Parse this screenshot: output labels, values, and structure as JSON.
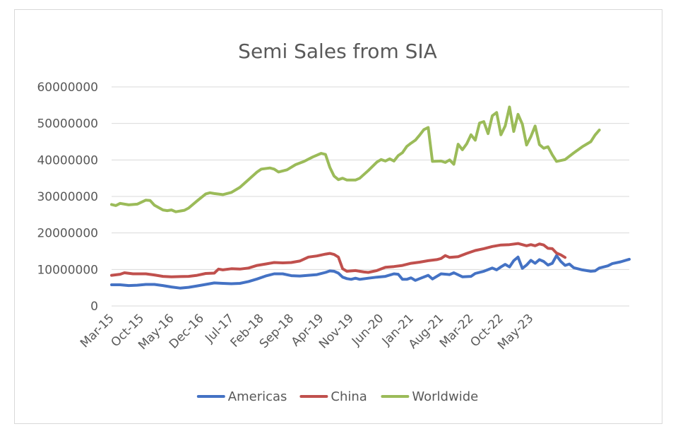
{
  "chart_data": {
    "type": "line",
    "title": "Semi Sales from SIA",
    "xlabel": "",
    "ylabel": "",
    "ylim": [
      0,
      60000000
    ],
    "yticks": [
      0,
      10000000,
      20000000,
      30000000,
      40000000,
      50000000,
      60000000
    ],
    "ytick_labels": [
      "0",
      "10000000",
      "20000000",
      "30000000",
      "40000000",
      "50000000",
      "60000000"
    ],
    "x_tick_labels": [
      "Mar-15",
      "Oct-15",
      "May-16",
      "Dec-16",
      "Jul-17",
      "Feb-18",
      "Sep-18",
      "Apr-19",
      "Nov-19",
      "Jun-20",
      "Jan-21",
      "Aug-21",
      "Mar-22",
      "Oct-22",
      "May-23"
    ],
    "x_tick_interval_months": 7,
    "x_start": "Mar-15",
    "grid": true,
    "legend_position": "bottom",
    "series": [
      {
        "name": "Americas",
        "color": "#4472C4",
        "points": [
          [
            0,
            5800000
          ],
          [
            2,
            5800000
          ],
          [
            4,
            5600000
          ],
          [
            6,
            5700000
          ],
          [
            8,
            5900000
          ],
          [
            10,
            5900000
          ],
          [
            12,
            5600000
          ],
          [
            14,
            5200000
          ],
          [
            16,
            4900000
          ],
          [
            18,
            5100000
          ],
          [
            20,
            5500000
          ],
          [
            22,
            5900000
          ],
          [
            24,
            6300000
          ],
          [
            26,
            6200000
          ],
          [
            28,
            6100000
          ],
          [
            30,
            6200000
          ],
          [
            32,
            6700000
          ],
          [
            34,
            7400000
          ],
          [
            36,
            8200000
          ],
          [
            38,
            8800000
          ],
          [
            40,
            8800000
          ],
          [
            42,
            8300000
          ],
          [
            44,
            8200000
          ],
          [
            46,
            8400000
          ],
          [
            48,
            8600000
          ],
          [
            50,
            9200000
          ],
          [
            51,
            9600000
          ],
          [
            52,
            9500000
          ],
          [
            53,
            9000000
          ],
          [
            54,
            7900000
          ],
          [
            55,
            7500000
          ],
          [
            56,
            7300000
          ],
          [
            57,
            7600000
          ],
          [
            58,
            7300000
          ],
          [
            60,
            7600000
          ],
          [
            62,
            7900000
          ],
          [
            64,
            8100000
          ],
          [
            66,
            8800000
          ],
          [
            67,
            8700000
          ],
          [
            68,
            7300000
          ],
          [
            69,
            7300000
          ],
          [
            70,
            7700000
          ],
          [
            71,
            7000000
          ],
          [
            72,
            7500000
          ],
          [
            74,
            8400000
          ],
          [
            75,
            7400000
          ],
          [
            77,
            8800000
          ],
          [
            79,
            8600000
          ],
          [
            80,
            9100000
          ],
          [
            82,
            8000000
          ],
          [
            84,
            8100000
          ],
          [
            85,
            8900000
          ],
          [
            87,
            9500000
          ],
          [
            89,
            10400000
          ],
          [
            90,
            9900000
          ],
          [
            91,
            10700000
          ],
          [
            92,
            11400000
          ],
          [
            93,
            10700000
          ],
          [
            94,
            12400000
          ],
          [
            95,
            13400000
          ],
          [
            96,
            10300000
          ],
          [
            97,
            11200000
          ],
          [
            98,
            12500000
          ],
          [
            99,
            11700000
          ],
          [
            100,
            12700000
          ],
          [
            101,
            12200000
          ],
          [
            102,
            11200000
          ],
          [
            103,
            11700000
          ],
          [
            104,
            13800000
          ],
          [
            105,
            12200000
          ],
          [
            106,
            11100000
          ],
          [
            107,
            11500000
          ],
          [
            108,
            10500000
          ],
          [
            110,
            9900000
          ],
          [
            112,
            9500000
          ],
          [
            113,
            9600000
          ],
          [
            114,
            10400000
          ],
          [
            116,
            11000000
          ],
          [
            117,
            11600000
          ],
          [
            119,
            12100000
          ],
          [
            121,
            12800000
          ]
        ]
      },
      {
        "name": "China",
        "color": "#C0504D",
        "points": [
          [
            0,
            8400000
          ],
          [
            2,
            8700000
          ],
          [
            3,
            9100000
          ],
          [
            5,
            8800000
          ],
          [
            8,
            8800000
          ],
          [
            10,
            8500000
          ],
          [
            12,
            8100000
          ],
          [
            14,
            8000000
          ],
          [
            18,
            8100000
          ],
          [
            20,
            8400000
          ],
          [
            22,
            8900000
          ],
          [
            24,
            9000000
          ],
          [
            25,
            10100000
          ],
          [
            26,
            9900000
          ],
          [
            28,
            10200000
          ],
          [
            30,
            10100000
          ],
          [
            32,
            10400000
          ],
          [
            34,
            11100000
          ],
          [
            36,
            11500000
          ],
          [
            38,
            11900000
          ],
          [
            40,
            11800000
          ],
          [
            42,
            11900000
          ],
          [
            44,
            12300000
          ],
          [
            46,
            13400000
          ],
          [
            48,
            13700000
          ],
          [
            50,
            14200000
          ],
          [
            51,
            14400000
          ],
          [
            52,
            14100000
          ],
          [
            53,
            13400000
          ],
          [
            54,
            10200000
          ],
          [
            55,
            9500000
          ],
          [
            57,
            9700000
          ],
          [
            59,
            9300000
          ],
          [
            60,
            9200000
          ],
          [
            62,
            9700000
          ],
          [
            64,
            10600000
          ],
          [
            66,
            10800000
          ],
          [
            68,
            11100000
          ],
          [
            70,
            11700000
          ],
          [
            72,
            12000000
          ],
          [
            74,
            12400000
          ],
          [
            76,
            12700000
          ],
          [
            77,
            13000000
          ],
          [
            78,
            13800000
          ],
          [
            79,
            13300000
          ],
          [
            81,
            13500000
          ],
          [
            83,
            14400000
          ],
          [
            85,
            15200000
          ],
          [
            87,
            15700000
          ],
          [
            89,
            16300000
          ],
          [
            91,
            16700000
          ],
          [
            93,
            16800000
          ],
          [
            95,
            17100000
          ],
          [
            97,
            16500000
          ],
          [
            98,
            16800000
          ],
          [
            99,
            16500000
          ],
          [
            100,
            17000000
          ],
          [
            101,
            16700000
          ],
          [
            102,
            15800000
          ],
          [
            103,
            15700000
          ],
          [
            104,
            14500000
          ],
          [
            105,
            14000000
          ],
          [
            106,
            13300000
          ]
        ]
      },
      {
        "name": "Worldwide",
        "color": "#9BBB59",
        "points": [
          [
            0,
            27800000
          ],
          [
            1,
            27500000
          ],
          [
            2,
            28100000
          ],
          [
            4,
            27700000
          ],
          [
            6,
            27900000
          ],
          [
            8,
            29000000
          ],
          [
            9,
            28900000
          ],
          [
            10,
            27600000
          ],
          [
            12,
            26300000
          ],
          [
            13,
            26100000
          ],
          [
            14,
            26300000
          ],
          [
            15,
            25800000
          ],
          [
            17,
            26200000
          ],
          [
            18,
            26800000
          ],
          [
            20,
            28800000
          ],
          [
            22,
            30700000
          ],
          [
            23,
            31000000
          ],
          [
            24,
            30800000
          ],
          [
            26,
            30500000
          ],
          [
            28,
            31100000
          ],
          [
            30,
            32500000
          ],
          [
            32,
            34600000
          ],
          [
            34,
            36700000
          ],
          [
            35,
            37500000
          ],
          [
            37,
            37800000
          ],
          [
            38,
            37500000
          ],
          [
            39,
            36700000
          ],
          [
            41,
            37300000
          ],
          [
            43,
            38700000
          ],
          [
            45,
            39600000
          ],
          [
            47,
            40800000
          ],
          [
            49,
            41800000
          ],
          [
            50,
            41500000
          ],
          [
            51,
            38000000
          ],
          [
            52,
            35600000
          ],
          [
            53,
            34600000
          ],
          [
            54,
            35000000
          ],
          [
            55,
            34500000
          ],
          [
            57,
            34500000
          ],
          [
            58,
            35000000
          ],
          [
            60,
            37100000
          ],
          [
            62,
            39400000
          ],
          [
            63,
            40100000
          ],
          [
            64,
            39700000
          ],
          [
            65,
            40300000
          ],
          [
            66,
            39700000
          ],
          [
            67,
            41200000
          ],
          [
            68,
            42000000
          ],
          [
            69,
            43700000
          ],
          [
            70,
            44600000
          ],
          [
            71,
            45400000
          ],
          [
            72,
            46800000
          ],
          [
            73,
            48300000
          ],
          [
            74,
            48900000
          ],
          [
            75,
            39600000
          ],
          [
            77,
            39700000
          ],
          [
            78,
            39300000
          ],
          [
            79,
            40000000
          ],
          [
            80,
            38800000
          ],
          [
            81,
            44300000
          ],
          [
            82,
            42800000
          ],
          [
            83,
            44400000
          ],
          [
            84,
            46900000
          ],
          [
            85,
            45400000
          ],
          [
            86,
            50100000
          ],
          [
            87,
            50500000
          ],
          [
            88,
            47200000
          ],
          [
            89,
            52100000
          ],
          [
            90,
            53000000
          ],
          [
            91,
            46900000
          ],
          [
            92,
            49300000
          ],
          [
            93,
            54500000
          ],
          [
            94,
            47800000
          ],
          [
            95,
            52500000
          ],
          [
            96,
            49800000
          ],
          [
            97,
            44100000
          ],
          [
            98,
            46400000
          ],
          [
            99,
            49300000
          ],
          [
            100,
            44200000
          ],
          [
            101,
            43200000
          ],
          [
            102,
            43600000
          ],
          [
            103,
            41400000
          ],
          [
            104,
            39600000
          ],
          [
            106,
            40100000
          ],
          [
            108,
            41900000
          ],
          [
            110,
            43600000
          ],
          [
            111,
            44300000
          ],
          [
            112,
            45000000
          ],
          [
            113,
            46800000
          ],
          [
            114,
            48200000
          ]
        ]
      }
    ]
  }
}
